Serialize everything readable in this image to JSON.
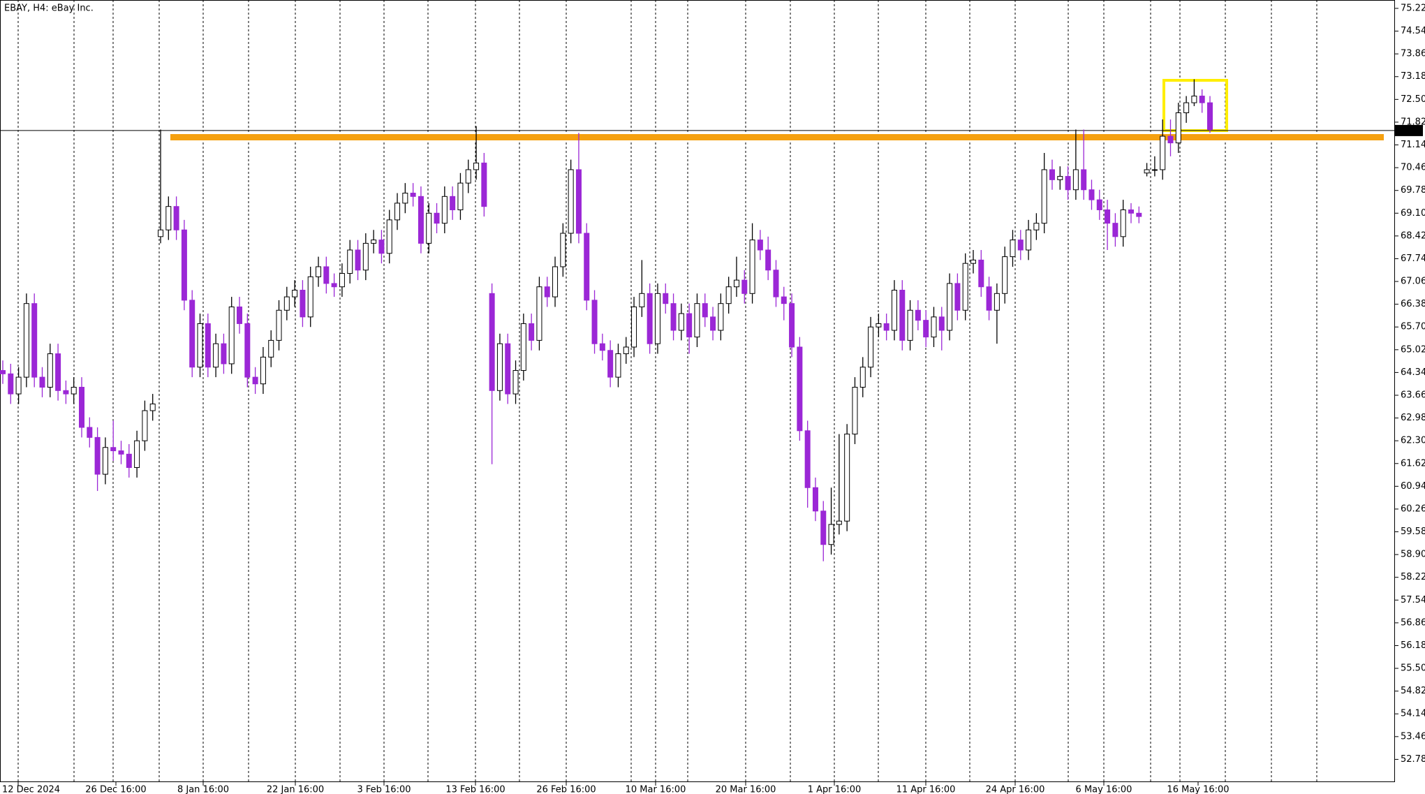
{
  "chart_data": {
    "type": "candlestick",
    "title": "EBAY, H4:  eBay Inc.",
    "open": [
      64.4,
      64.3,
      63.7,
      64.2,
      66.4,
      64.2,
      63.9,
      64.9,
      63.8,
      63.7,
      63.9,
      62.7,
      62.4,
      61.3,
      62.1,
      62.0,
      61.9,
      61.5,
      62.3,
      63.2,
      68.4,
      68.6,
      69.3,
      68.6,
      66.5,
      64.5,
      65.8,
      64.5,
      65.2,
      64.6,
      66.3,
      65.8,
      64.2,
      64.0,
      64.8,
      65.3,
      66.2,
      66.6,
      66.8,
      66.0,
      67.2,
      67.5,
      67.0,
      66.9,
      67.3,
      68.0,
      67.4,
      68.2,
      68.3,
      67.9,
      68.9,
      69.4,
      69.7,
      69.6,
      68.2,
      69.1,
      68.8,
      69.6,
      69.2,
      70.0,
      70.4,
      70.6,
      66.7,
      63.8,
      65.2,
      63.7,
      64.4,
      65.8,
      65.3,
      66.9,
      66.6,
      67.5,
      68.5,
      70.4,
      68.5,
      66.5,
      65.2,
      65.0,
      64.2,
      64.9,
      65.1,
      66.3,
      66.7,
      65.2,
      66.7,
      66.4,
      65.6,
      66.1,
      65.4,
      66.4,
      66.0,
      65.6,
      66.4,
      66.9,
      67.1,
      66.7,
      68.3,
      68.0,
      67.4,
      66.6,
      66.4,
      65.1,
      62.6,
      60.9,
      60.2,
      59.2,
      59.8,
      59.9,
      62.5,
      63.9,
      64.5,
      65.7,
      65.8,
      65.6,
      66.8,
      65.3,
      66.2,
      65.9,
      65.4,
      66.0,
      65.6,
      67.0,
      66.2,
      67.6,
      67.7,
      66.9,
      66.2,
      66.7,
      67.8,
      68.3,
      68.0,
      68.6,
      68.8,
      70.4,
      70.1,
      70.2,
      69.8,
      70.4,
      69.8,
      69.5,
      69.2,
      68.8,
      68.4,
      69.2,
      69.1,
      70.3,
      70.4,
      70.4,
      71.4,
      71.2,
      72.1,
      72.4,
      72.6,
      72.4
    ],
    "high": [
      64.7,
      64.6,
      64.5,
      66.7,
      66.7,
      64.5,
      65.2,
      65.2,
      64.1,
      64.2,
      64.2,
      63.0,
      62.7,
      62.4,
      62.9,
      62.3,
      62.2,
      62.6,
      63.5,
      63.7,
      71.6,
      69.6,
      69.6,
      68.9,
      66.8,
      66.1,
      66.1,
      65.5,
      65.5,
      66.6,
      66.6,
      66.1,
      64.5,
      65.1,
      65.6,
      66.5,
      66.9,
      67.1,
      67.1,
      67.5,
      67.8,
      67.8,
      67.3,
      67.6,
      68.3,
      68.3,
      68.5,
      68.6,
      68.6,
      69.2,
      69.7,
      70.0,
      70.0,
      69.9,
      69.4,
      69.4,
      69.9,
      69.9,
      70.3,
      70.7,
      71.7,
      70.9,
      67.0,
      65.5,
      65.5,
      64.7,
      66.1,
      66.1,
      67.2,
      67.2,
      67.8,
      68.8,
      70.7,
      71.5,
      68.8,
      66.8,
      65.5,
      65.3,
      65.2,
      65.4,
      66.6,
      67.7,
      67.0,
      67.0,
      67.0,
      66.7,
      66.4,
      66.4,
      66.7,
      66.7,
      66.3,
      66.7,
      67.2,
      67.8,
      67.4,
      68.8,
      68.6,
      68.4,
      67.7,
      66.9,
      66.7,
      65.4,
      62.9,
      61.2,
      60.5,
      60.9,
      62.5,
      62.8,
      64.2,
      64.8,
      66.0,
      66.1,
      66.1,
      67.1,
      67.1,
      66.5,
      66.5,
      66.2,
      66.3,
      66.3,
      67.3,
      67.3,
      67.9,
      68.0,
      68.0,
      67.2,
      67.0,
      68.1,
      68.6,
      68.6,
      68.9,
      69.1,
      70.9,
      70.7,
      70.5,
      70.5,
      71.6,
      71.6,
      70.1,
      69.8,
      69.5,
      69.1,
      69.5,
      69.4,
      69.3,
      70.6,
      70.8,
      71.9,
      71.9,
      72.4,
      72.6,
      73.1,
      72.8,
      72.6
    ],
    "low": [
      64.0,
      63.4,
      63.4,
      63.9,
      63.9,
      63.6,
      63.6,
      63.5,
      63.4,
      63.4,
      62.4,
      62.1,
      60.8,
      61.0,
      61.7,
      61.6,
      61.2,
      61.2,
      62.0,
      62.9,
      68.2,
      68.3,
      68.3,
      66.2,
      64.2,
      64.2,
      64.2,
      64.2,
      64.3,
      64.3,
      65.5,
      63.9,
      63.7,
      63.7,
      64.5,
      65.0,
      65.9,
      66.3,
      65.7,
      65.7,
      66.9,
      66.7,
      66.6,
      66.6,
      67.0,
      67.1,
      67.1,
      67.9,
      67.6,
      67.6,
      68.6,
      69.1,
      69.3,
      67.9,
      67.9,
      68.5,
      68.5,
      68.9,
      68.9,
      69.7,
      70.1,
      69.0,
      61.6,
      63.5,
      63.4,
      63.4,
      64.1,
      65.0,
      65.0,
      66.3,
      66.3,
      67.2,
      68.2,
      68.2,
      66.2,
      64.9,
      64.7,
      63.9,
      63.9,
      64.6,
      64.8,
      66.0,
      64.9,
      64.9,
      66.1,
      65.3,
      65.3,
      64.9,
      65.1,
      65.7,
      65.3,
      65.3,
      66.1,
      66.6,
      66.4,
      66.4,
      67.7,
      67.1,
      66.3,
      65.9,
      64.8,
      62.3,
      60.3,
      59.9,
      58.7,
      58.9,
      59.5,
      59.6,
      62.2,
      63.6,
      64.2,
      65.4,
      65.3,
      65.3,
      65.0,
      65.0,
      65.6,
      65.1,
      65.1,
      65.0,
      65.3,
      65.9,
      65.9,
      67.3,
      66.6,
      65.9,
      65.2,
      66.4,
      67.5,
      67.7,
      67.7,
      68.3,
      68.5,
      69.8,
      69.8,
      69.5,
      69.5,
      69.5,
      69.2,
      68.9,
      68.0,
      68.1,
      68.1,
      68.8,
      68.8,
      70.2,
      70.2,
      70.1,
      70.8,
      70.9,
      71.8,
      72.3,
      72.1,
      71.5
    ],
    "close": [
      64.3,
      63.7,
      64.2,
      66.4,
      64.2,
      63.9,
      64.9,
      63.8,
      63.7,
      63.9,
      62.7,
      62.4,
      61.3,
      62.1,
      62.0,
      61.9,
      61.5,
      62.3,
      63.2,
      63.4,
      68.6,
      69.3,
      68.6,
      66.5,
      64.5,
      65.8,
      64.5,
      65.2,
      64.6,
      66.3,
      65.8,
      64.2,
      64.0,
      64.8,
      65.3,
      66.2,
      66.6,
      66.8,
      66.0,
      67.2,
      67.5,
      67.0,
      66.9,
      67.3,
      68.0,
      67.4,
      68.2,
      68.3,
      67.9,
      68.9,
      69.4,
      69.7,
      69.6,
      68.2,
      69.1,
      68.8,
      69.6,
      69.2,
      70.0,
      70.4,
      70.6,
      69.3,
      63.8,
      65.2,
      63.7,
      64.4,
      65.8,
      65.3,
      66.9,
      66.6,
      67.5,
      68.5,
      70.4,
      68.5,
      66.5,
      65.2,
      65.0,
      64.2,
      64.9,
      65.1,
      66.3,
      66.7,
      65.2,
      66.7,
      66.4,
      65.6,
      66.1,
      65.4,
      66.4,
      66.0,
      65.6,
      66.4,
      66.9,
      67.1,
      66.7,
      68.3,
      68.0,
      67.4,
      66.6,
      66.4,
      65.1,
      62.6,
      60.9,
      60.2,
      59.2,
      59.8,
      59.9,
      62.5,
      63.9,
      64.5,
      65.7,
      65.8,
      65.6,
      66.8,
      65.3,
      66.2,
      65.9,
      65.4,
      66.0,
      65.6,
      67.0,
      66.2,
      67.6,
      67.7,
      66.9,
      66.2,
      66.7,
      67.8,
      68.3,
      68.0,
      68.6,
      68.8,
      70.4,
      70.1,
      70.2,
      69.8,
      70.4,
      69.8,
      69.5,
      69.2,
      68.8,
      68.4,
      69.2,
      69.1,
      69.0,
      70.4,
      70.4,
      71.4,
      71.2,
      72.1,
      72.4,
      72.6,
      72.4,
      71.6
    ],
    "up_color": "#ffffff",
    "down_color": "#9b27d6",
    "x_labels": [
      "12 Dec 2024",
      "26 Dec 16:00",
      "8 Jan 16:00",
      "22 Jan 16:00",
      "3 Feb 16:00",
      "13 Feb 16:00",
      "26 Feb 16:00",
      "10 Mar 16:00",
      "20 Mar 16:00",
      "1 Apr 16:00",
      "11 Apr 16:00",
      "24 Apr 16:00",
      "6 May 16:00",
      "16 May 16:00"
    ],
    "ylim": [
      52.1,
      75.47
    ],
    "yticks": [
      75.22,
      74.54,
      73.86,
      73.18,
      {
        "value": 72.5,
        "label": "72.50"
      },
      71.82,
      71.14,
      70.46,
      69.78,
      {
        "value": 69.1,
        "label": "69.10"
      },
      68.42,
      67.74,
      67.06,
      66.38,
      {
        "value": 65.7,
        "label": "65.70"
      },
      65.02,
      64.34,
      63.66,
      62.98,
      {
        "value": 62.3,
        "label": "62.30"
      },
      61.62,
      60.94,
      60.26,
      59.58,
      {
        "value": 58.9,
        "label": "58.90"
      },
      58.22,
      57.54,
      56.86,
      56.18,
      {
        "value": 55.5,
        "label": "55.50"
      },
      54.82,
      54.14,
      53.46,
      52.78
    ],
    "last_price": 71.57
  }
}
